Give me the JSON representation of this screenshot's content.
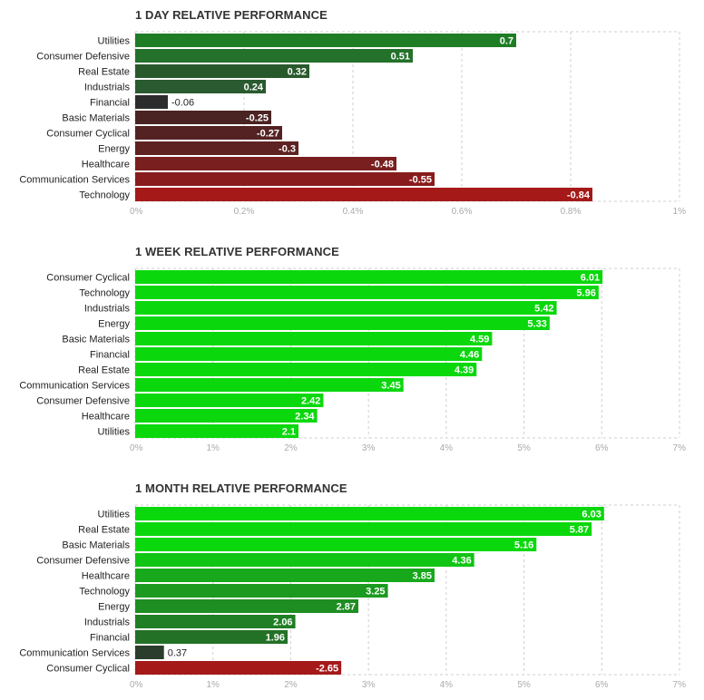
{
  "colors": {
    "grid": "#cfcfcf",
    "label": "#222222",
    "tick": "#aaaaaa",
    "value_inside": "#ffffff",
    "value_outside": "#222222"
  },
  "chart_data": [
    {
      "type": "bar",
      "orientation": "horizontal",
      "title": "1 DAY RELATIVE PERFORMANCE",
      "categories": [
        "Utilities",
        "Consumer Defensive",
        "Real Estate",
        "Industrials",
        "Financial",
        "Basic Materials",
        "Consumer Cyclical",
        "Energy",
        "Healthcare",
        "Communication Services",
        "Technology"
      ],
      "values": [
        0.7,
        0.51,
        0.32,
        0.24,
        -0.06,
        -0.25,
        -0.27,
        -0.3,
        -0.48,
        -0.55,
        -0.84
      ],
      "value_labels": [
        "0.7",
        "0.51",
        "0.32",
        "0.24",
        "-0.06",
        "-0.25",
        "-0.27",
        "-0.3",
        "-0.48",
        "-0.55",
        "-0.84"
      ],
      "colors": [
        "#1e7d25",
        "#23712a",
        "#28592c",
        "#2a5a2f",
        "#2c2c2c",
        "#4a2323",
        "#542222",
        "#5e2222",
        "#7a1f1f",
        "#881c1c",
        "#a51919"
      ],
      "xlim": [
        0,
        1
      ],
      "xticks": [
        "0%",
        "0.2%",
        "0.4%",
        "0.6%",
        "0.8%",
        "1%"
      ],
      "grid": true,
      "note": "bar length encodes absolute value"
    },
    {
      "type": "bar",
      "orientation": "horizontal",
      "title": "1 WEEK RELATIVE PERFORMANCE",
      "categories": [
        "Consumer Cyclical",
        "Technology",
        "Industrials",
        "Energy",
        "Basic Materials",
        "Financial",
        "Real Estate",
        "Communication Services",
        "Consumer Defensive",
        "Healthcare",
        "Utilities"
      ],
      "values": [
        6.01,
        5.96,
        5.42,
        5.33,
        4.59,
        4.46,
        4.39,
        3.45,
        2.42,
        2.34,
        2.1
      ],
      "value_labels": [
        "6.01",
        "5.96",
        "5.42",
        "5.33",
        "4.59",
        "4.46",
        "4.39",
        "3.45",
        "2.42",
        "2.34",
        "2.1"
      ],
      "colors": [
        "#0ad80d",
        "#0ad80d",
        "#0ad80d",
        "#0ad80d",
        "#0ad80d",
        "#0ad80d",
        "#0ad80d",
        "#0ad80d",
        "#0ad80d",
        "#0ad80d",
        "#0ad80d"
      ],
      "xlim": [
        0,
        7
      ],
      "xticks": [
        "0%",
        "1%",
        "2%",
        "3%",
        "4%",
        "5%",
        "6%",
        "7%"
      ],
      "grid": true
    },
    {
      "type": "bar",
      "orientation": "horizontal",
      "title": "1 MONTH RELATIVE PERFORMANCE",
      "categories": [
        "Utilities",
        "Real Estate",
        "Basic Materials",
        "Consumer Defensive",
        "Healthcare",
        "Technology",
        "Energy",
        "Industrials",
        "Financial",
        "Communication Services",
        "Consumer Cyclical"
      ],
      "values": [
        6.03,
        5.87,
        5.16,
        4.36,
        3.85,
        3.25,
        2.87,
        2.06,
        1.96,
        0.37,
        -2.65
      ],
      "value_labels": [
        "6.03",
        "5.87",
        "5.16",
        "4.36",
        "3.85",
        "3.25",
        "2.87",
        "2.06",
        "1.96",
        "0.37",
        "-2.65"
      ],
      "colors": [
        "#0ad80d",
        "#0ad80d",
        "#0ad80d",
        "#10c513",
        "#18a81b",
        "#1c9a20",
        "#1e8e22",
        "#1f7f24",
        "#237126",
        "#2b3d2c",
        "#a51919"
      ],
      "xlim": [
        0,
        7
      ],
      "xticks": [
        "0%",
        "1%",
        "2%",
        "3%",
        "4%",
        "5%",
        "6%",
        "7%"
      ],
      "grid": true
    }
  ]
}
